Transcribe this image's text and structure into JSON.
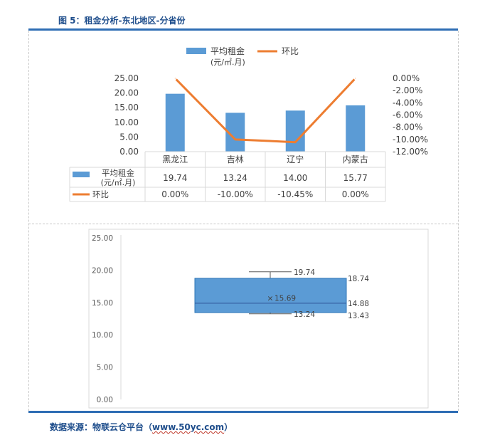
{
  "header": {
    "figure_title": "图 5：租金分析-东北地区-分省份"
  },
  "footer": {
    "source_prefix": "数据来源：物联云仓平台（",
    "source_url": "www.50yc.com",
    "source_suffix": "）"
  },
  "colors": {
    "bar": "#5b9bd5",
    "line": "#ed7d31",
    "rule": "#2e6db4",
    "title": "#1f4e8c",
    "box_fill": "#5b9bd5",
    "box_edge": "#2e75b6"
  },
  "chart_data": [
    {
      "type": "bar",
      "categories": [
        "黑龙江",
        "吉林",
        "辽宁",
        "内蒙古"
      ],
      "series": [
        {
          "name": "平均租金",
          "name_line2": "(元/㎡.月)",
          "axis": "left",
          "kind": "bar",
          "values": [
            19.74,
            13.24,
            14.0,
            15.77
          ],
          "table_values": [
            "19.74",
            "13.24",
            "14.00",
            "15.77"
          ]
        },
        {
          "name": "环比",
          "axis": "right",
          "kind": "line",
          "values": [
            0.0,
            -10.0,
            -10.45,
            0.0
          ],
          "table_values": [
            "0.00%",
            "-10.00%",
            "-10.45%",
            "0.00%"
          ]
        }
      ],
      "ylim": [
        0,
        25
      ],
      "y_ticks": [
        "25.00",
        "20.00",
        "15.00",
        "10.00",
        "5.00",
        "0.00"
      ],
      "y2lim": [
        -12,
        0
      ],
      "y2_ticks": [
        "0.00%",
        "-2.00%",
        "-4.00%",
        "-6.00%",
        "-8.00%",
        "-10.00%",
        "-12.00%"
      ],
      "legend": "top",
      "data_table": true,
      "grid": false
    },
    {
      "type": "box",
      "ylim": [
        0,
        25
      ],
      "y_ticks": [
        "25.00",
        "20.00",
        "15.00",
        "10.00",
        "5.00",
        "0.00"
      ],
      "max": 19.74,
      "q3": 18.74,
      "median": 14.88,
      "mean": 15.69,
      "q1": 13.43,
      "min": 13.24,
      "labels": {
        "max": "19.74",
        "q3": "18.74",
        "median": "14.88",
        "mean": "15.69",
        "q1": "13.43",
        "min": "13.24"
      },
      "mean_marker": "×",
      "grid": false
    }
  ]
}
